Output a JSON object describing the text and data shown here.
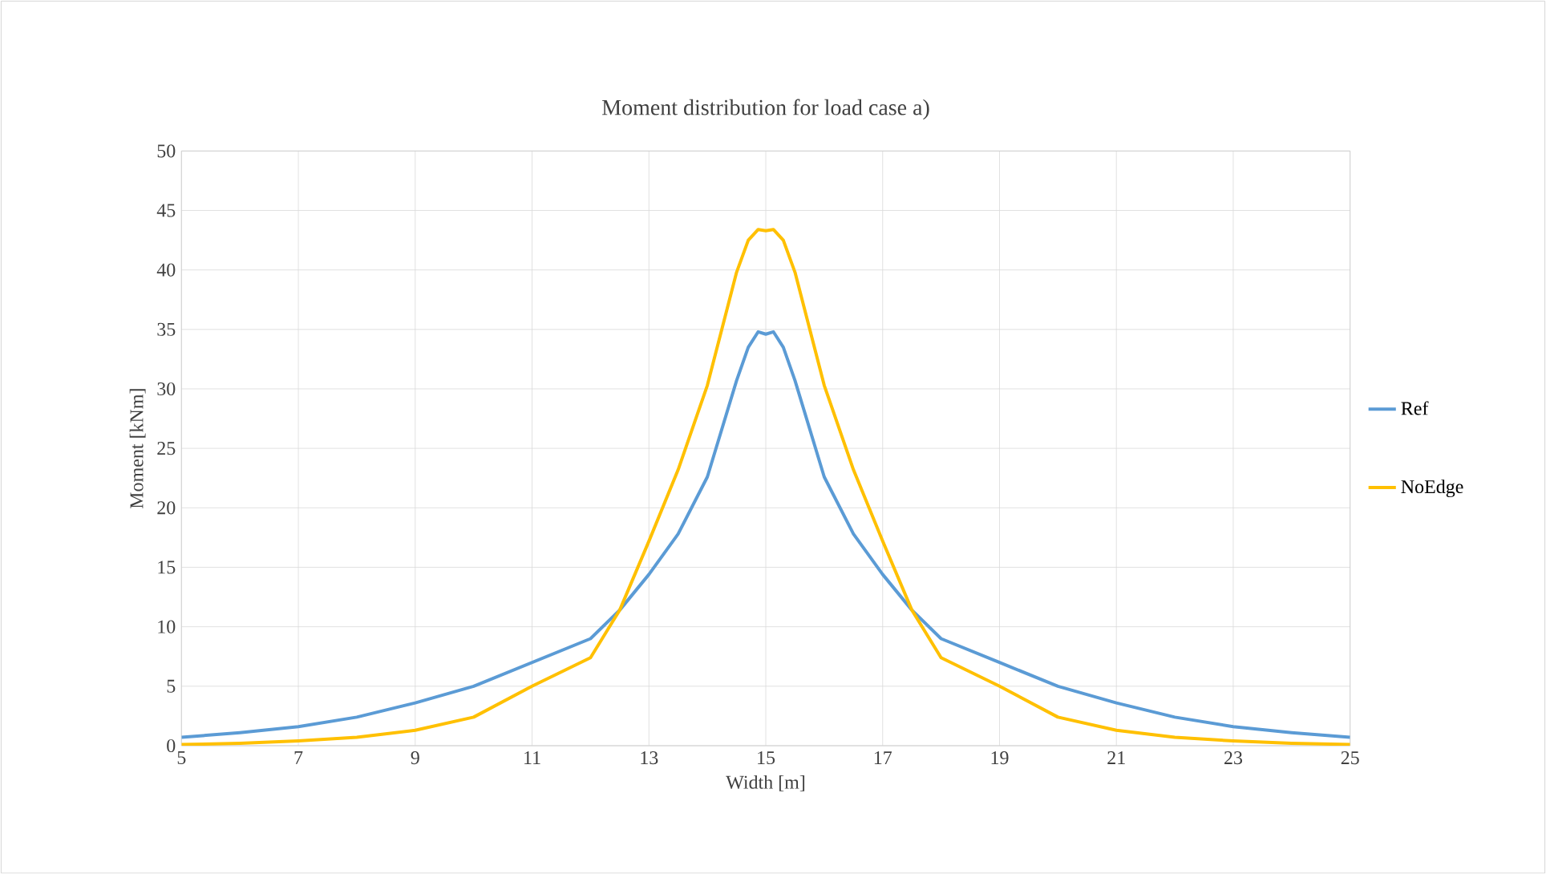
{
  "chart_data": {
    "type": "line",
    "title": "Moment distribution for load case a)",
    "xlabel": "Width [m]",
    "ylabel": "Moment [kNm]",
    "x": [
      5,
      6,
      7,
      8,
      9,
      10,
      11,
      12,
      12.5,
      13,
      13.5,
      14,
      14.5,
      14.7,
      14.87,
      15,
      15.13,
      15.3,
      15.5,
      16,
      16.5,
      17,
      17.5,
      18,
      19,
      20,
      21,
      22,
      23,
      24,
      25
    ],
    "series": [
      {
        "name": "Ref",
        "color": "#5b9bd5",
        "values": [
          0.7,
          1.1,
          1.6,
          2.4,
          3.6,
          5.0,
          7.0,
          9.0,
          11.4,
          14.4,
          17.8,
          22.6,
          30.7,
          33.5,
          34.8,
          34.6,
          34.8,
          33.5,
          30.7,
          22.6,
          17.8,
          14.4,
          11.4,
          9.0,
          7.0,
          5.0,
          3.6,
          2.4,
          1.6,
          1.1,
          0.7
        ]
      },
      {
        "name": "NoEdge",
        "color": "#ffc000",
        "values": [
          0.1,
          0.2,
          0.4,
          0.7,
          1.3,
          2.4,
          5.0,
          7.4,
          11.4,
          17.2,
          23.2,
          30.3,
          39.8,
          42.5,
          43.4,
          43.3,
          43.4,
          42.5,
          39.8,
          30.3,
          23.2,
          17.2,
          11.4,
          7.4,
          5.0,
          2.4,
          1.3,
          0.7,
          0.4,
          0.2,
          0.1
        ]
      }
    ],
    "xlim": [
      5,
      25
    ],
    "xticks": [
      5,
      7,
      9,
      11,
      13,
      15,
      17,
      19,
      21,
      23,
      25
    ],
    "ylim": [
      0,
      50
    ],
    "yticks": [
      0,
      5,
      10,
      15,
      20,
      25,
      30,
      35,
      40,
      45,
      50
    ],
    "grid": true,
    "legend": "right",
    "marker": "none",
    "line_style": "solid"
  }
}
